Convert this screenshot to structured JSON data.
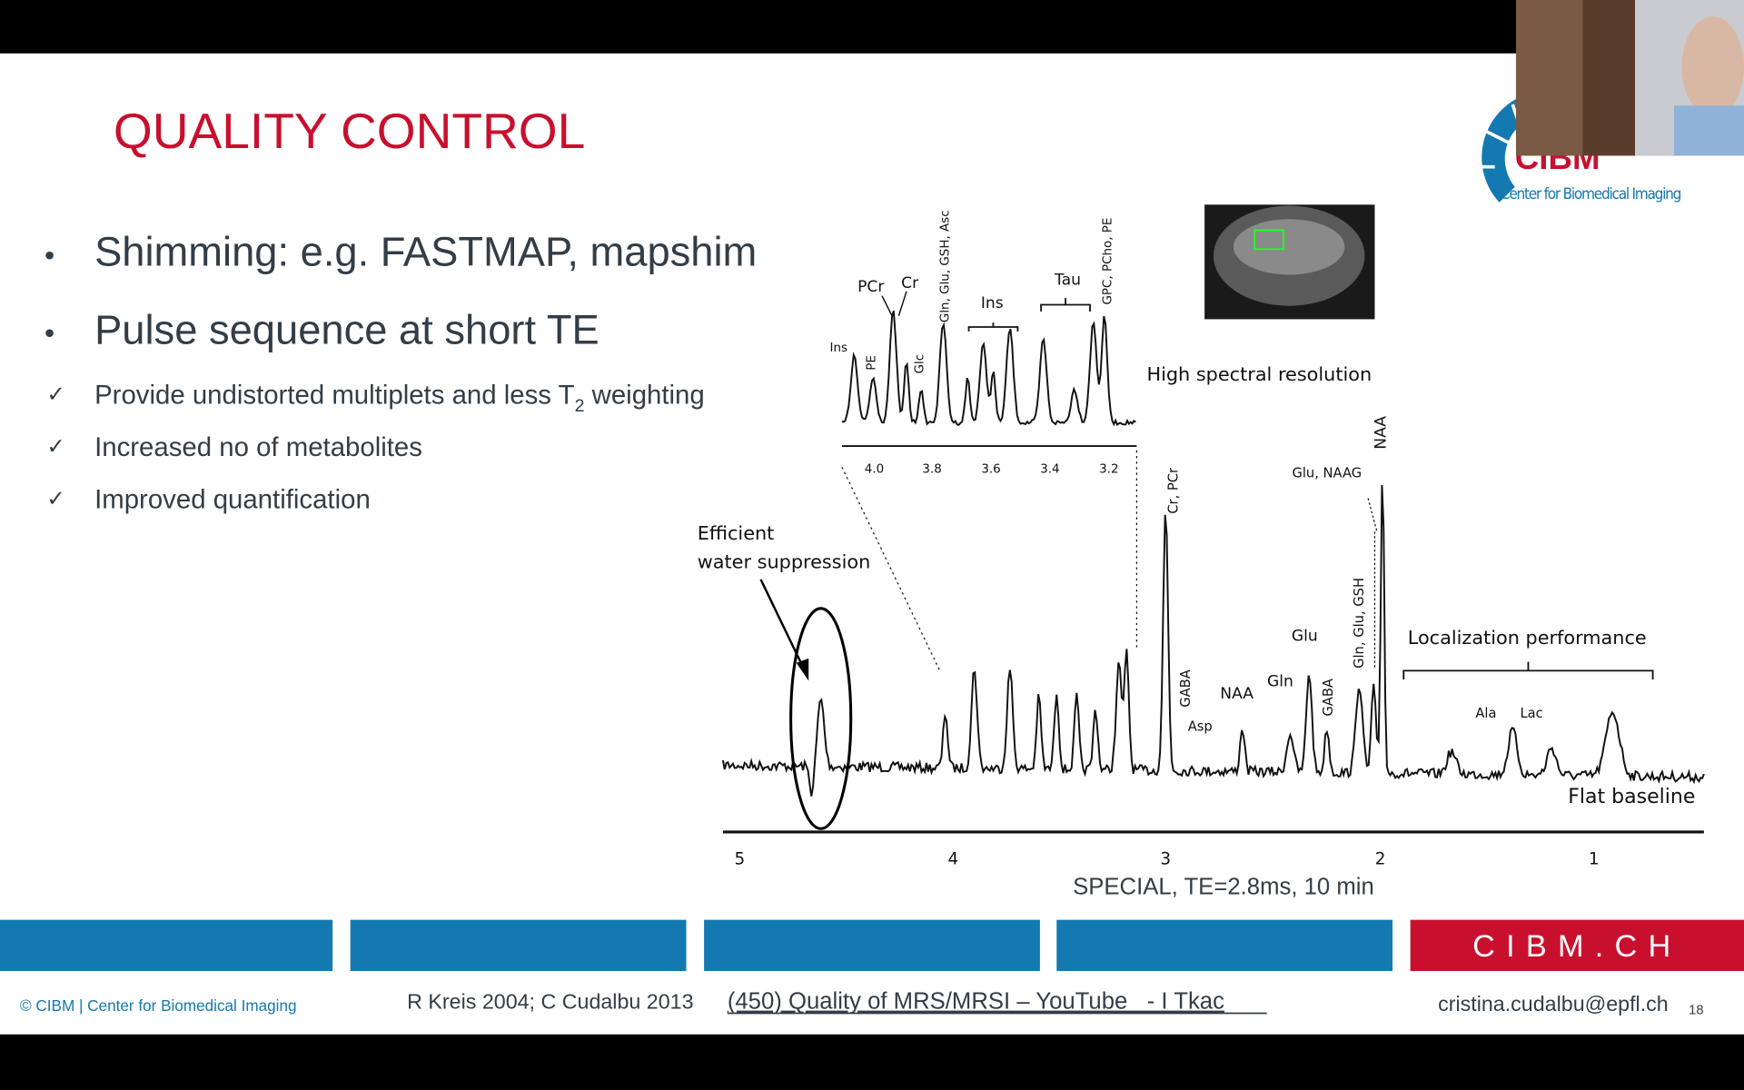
{
  "slide": {
    "title": "QUALITY CONTROL",
    "bullets": [
      "Shimming: e.g. FASTMAP, mapshim",
      "Pulse sequence at short TE"
    ],
    "checks": [
      [
        "Provide undistorted multiplets and less T",
        "2",
        " weighting"
      ],
      [
        "Increased no of metabolites"
      ],
      [
        "Improved quantification"
      ]
    ],
    "check_mark": "✓",
    "bullet_mark": "•",
    "logo": {
      "short": "CIBM",
      "name": "Center for Biomedical Imaging"
    },
    "figure": {
      "inset_labels": {
        "ins1": "Ins",
        "pe": "PE",
        "pcr": "PCr",
        "cr": "Cr",
        "glc": "Glc",
        "gln_asc": "Gln, Glu, GSH, Asc",
        "ins2": "Ins",
        "tau": "Tau",
        "gpc": "GPC, PCho, PE"
      },
      "inset_ticks": [
        "4.0",
        "3.8",
        "3.6",
        "3.4",
        "3.2"
      ],
      "resolution_note": "High spectral resolution",
      "water_note": [
        "Efficient",
        "water suppression"
      ],
      "main_labels": {
        "crpcr": "Cr, PCr",
        "gaba1": "GABA",
        "asp": "Asp",
        "naa1": "NAA",
        "gln": "Gln",
        "glu": "Glu",
        "gaba2": "GABA",
        "glnglu": "Gln, Glu, GSH",
        "glunaag": "Glu, NAAG",
        "naa2": "NAA",
        "ala": "Ala",
        "lac": "Lac"
      },
      "localization_note": "Localization performance",
      "baseline_note": "Flat baseline",
      "x_ticks": [
        "5",
        "4",
        "3",
        "2",
        "1"
      ],
      "caption": "SPECIAL, TE=2.8ms, 10 min"
    },
    "footer": {
      "copyright": "© CIBM | Center for Biomedical Imaging",
      "refs": "R Kreis 2004; C Cudalbu 2013",
      "link": "(450) Quality of MRS/MRSI – YouTube   - I Tkac",
      "email": "cristina.cudalbu@epfl.ch",
      "page": "18",
      "brand": "CIBM.CH"
    }
  }
}
